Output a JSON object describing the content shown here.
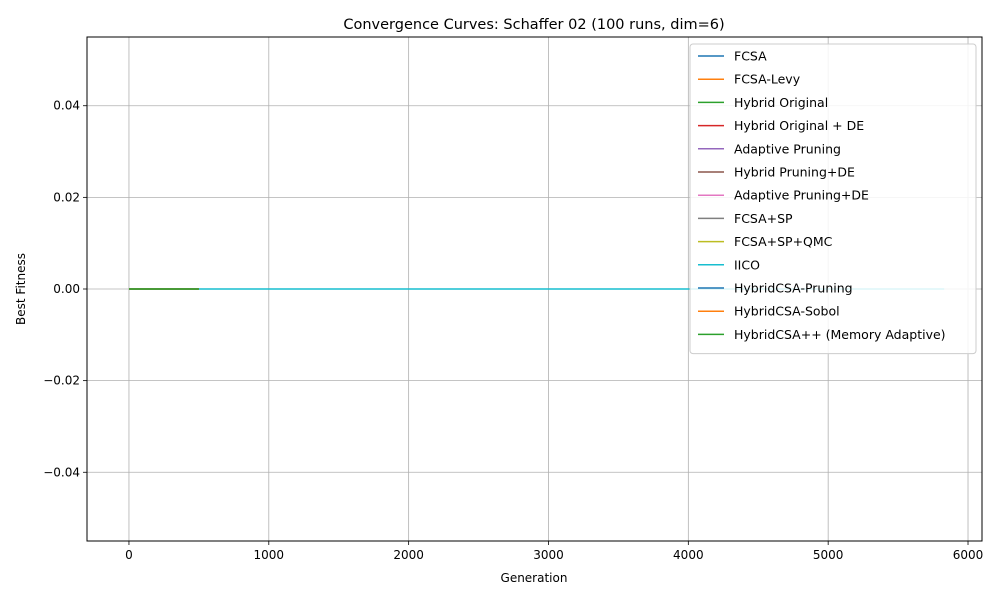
{
  "chart_data": {
    "type": "line",
    "title": "Convergence Curves: Schaffer 02 (100 runs, dim=6)",
    "xlabel": "Generation",
    "ylabel": "Best Fitness",
    "xlim": [
      -300,
      6100
    ],
    "ylim": [
      -0.055,
      0.055
    ],
    "xticks": [
      0,
      1000,
      2000,
      3000,
      4000,
      5000,
      6000
    ],
    "xtick_labels": [
      "0",
      "1000",
      "2000",
      "3000",
      "4000",
      "5000",
      "6000"
    ],
    "yticks": [
      -0.04,
      -0.02,
      0.0,
      0.02,
      0.04
    ],
    "ytick_labels": [
      "−0.04",
      "−0.02",
      "0.00",
      "0.02",
      "0.04"
    ],
    "grid": true,
    "legend_position": "top-right",
    "series": [
      {
        "name": "FCSA",
        "color": "#1f77b4",
        "x": [
          0,
          500
        ],
        "y": [
          0,
          0
        ]
      },
      {
        "name": "FCSA-Levy",
        "color": "#ff7f0e",
        "x": [
          0,
          500
        ],
        "y": [
          0,
          0
        ]
      },
      {
        "name": "Hybrid Original",
        "color": "#2ca02c",
        "x": [
          0,
          500
        ],
        "y": [
          0,
          0
        ]
      },
      {
        "name": "Hybrid Original + DE",
        "color": "#d62728",
        "x": [
          0,
          500
        ],
        "y": [
          0,
          0
        ]
      },
      {
        "name": "Adaptive Pruning",
        "color": "#9467bd",
        "x": [
          0,
          500
        ],
        "y": [
          0,
          0
        ]
      },
      {
        "name": "Hybrid Pruning+DE",
        "color": "#8c564b",
        "x": [
          0,
          500
        ],
        "y": [
          0,
          0
        ]
      },
      {
        "name": "Adaptive Pruning+DE",
        "color": "#e377c2",
        "x": [
          0,
          500
        ],
        "y": [
          0,
          0
        ]
      },
      {
        "name": "FCSA+SP",
        "color": "#7f7f7f",
        "x": [
          0,
          500
        ],
        "y": [
          0,
          0
        ]
      },
      {
        "name": "FCSA+SP+QMC",
        "color": "#bcbd22",
        "x": [
          0,
          500
        ],
        "y": [
          0,
          0
        ]
      },
      {
        "name": "IICO",
        "color": "#17becf",
        "x": [
          0,
          5830
        ],
        "y": [
          0,
          0
        ]
      },
      {
        "name": "HybridCSA-Pruning",
        "color": "#1f77b4",
        "x": [
          0,
          500
        ],
        "y": [
          0,
          0
        ]
      },
      {
        "name": "HybridCSA-Sobol",
        "color": "#ff7f0e",
        "x": [
          0,
          500
        ],
        "y": [
          0,
          0
        ]
      },
      {
        "name": "HybridCSA++ (Memory Adaptive)",
        "color": "#2ca02c",
        "x": [
          0,
          500
        ],
        "y": [
          0,
          0
        ]
      }
    ]
  }
}
